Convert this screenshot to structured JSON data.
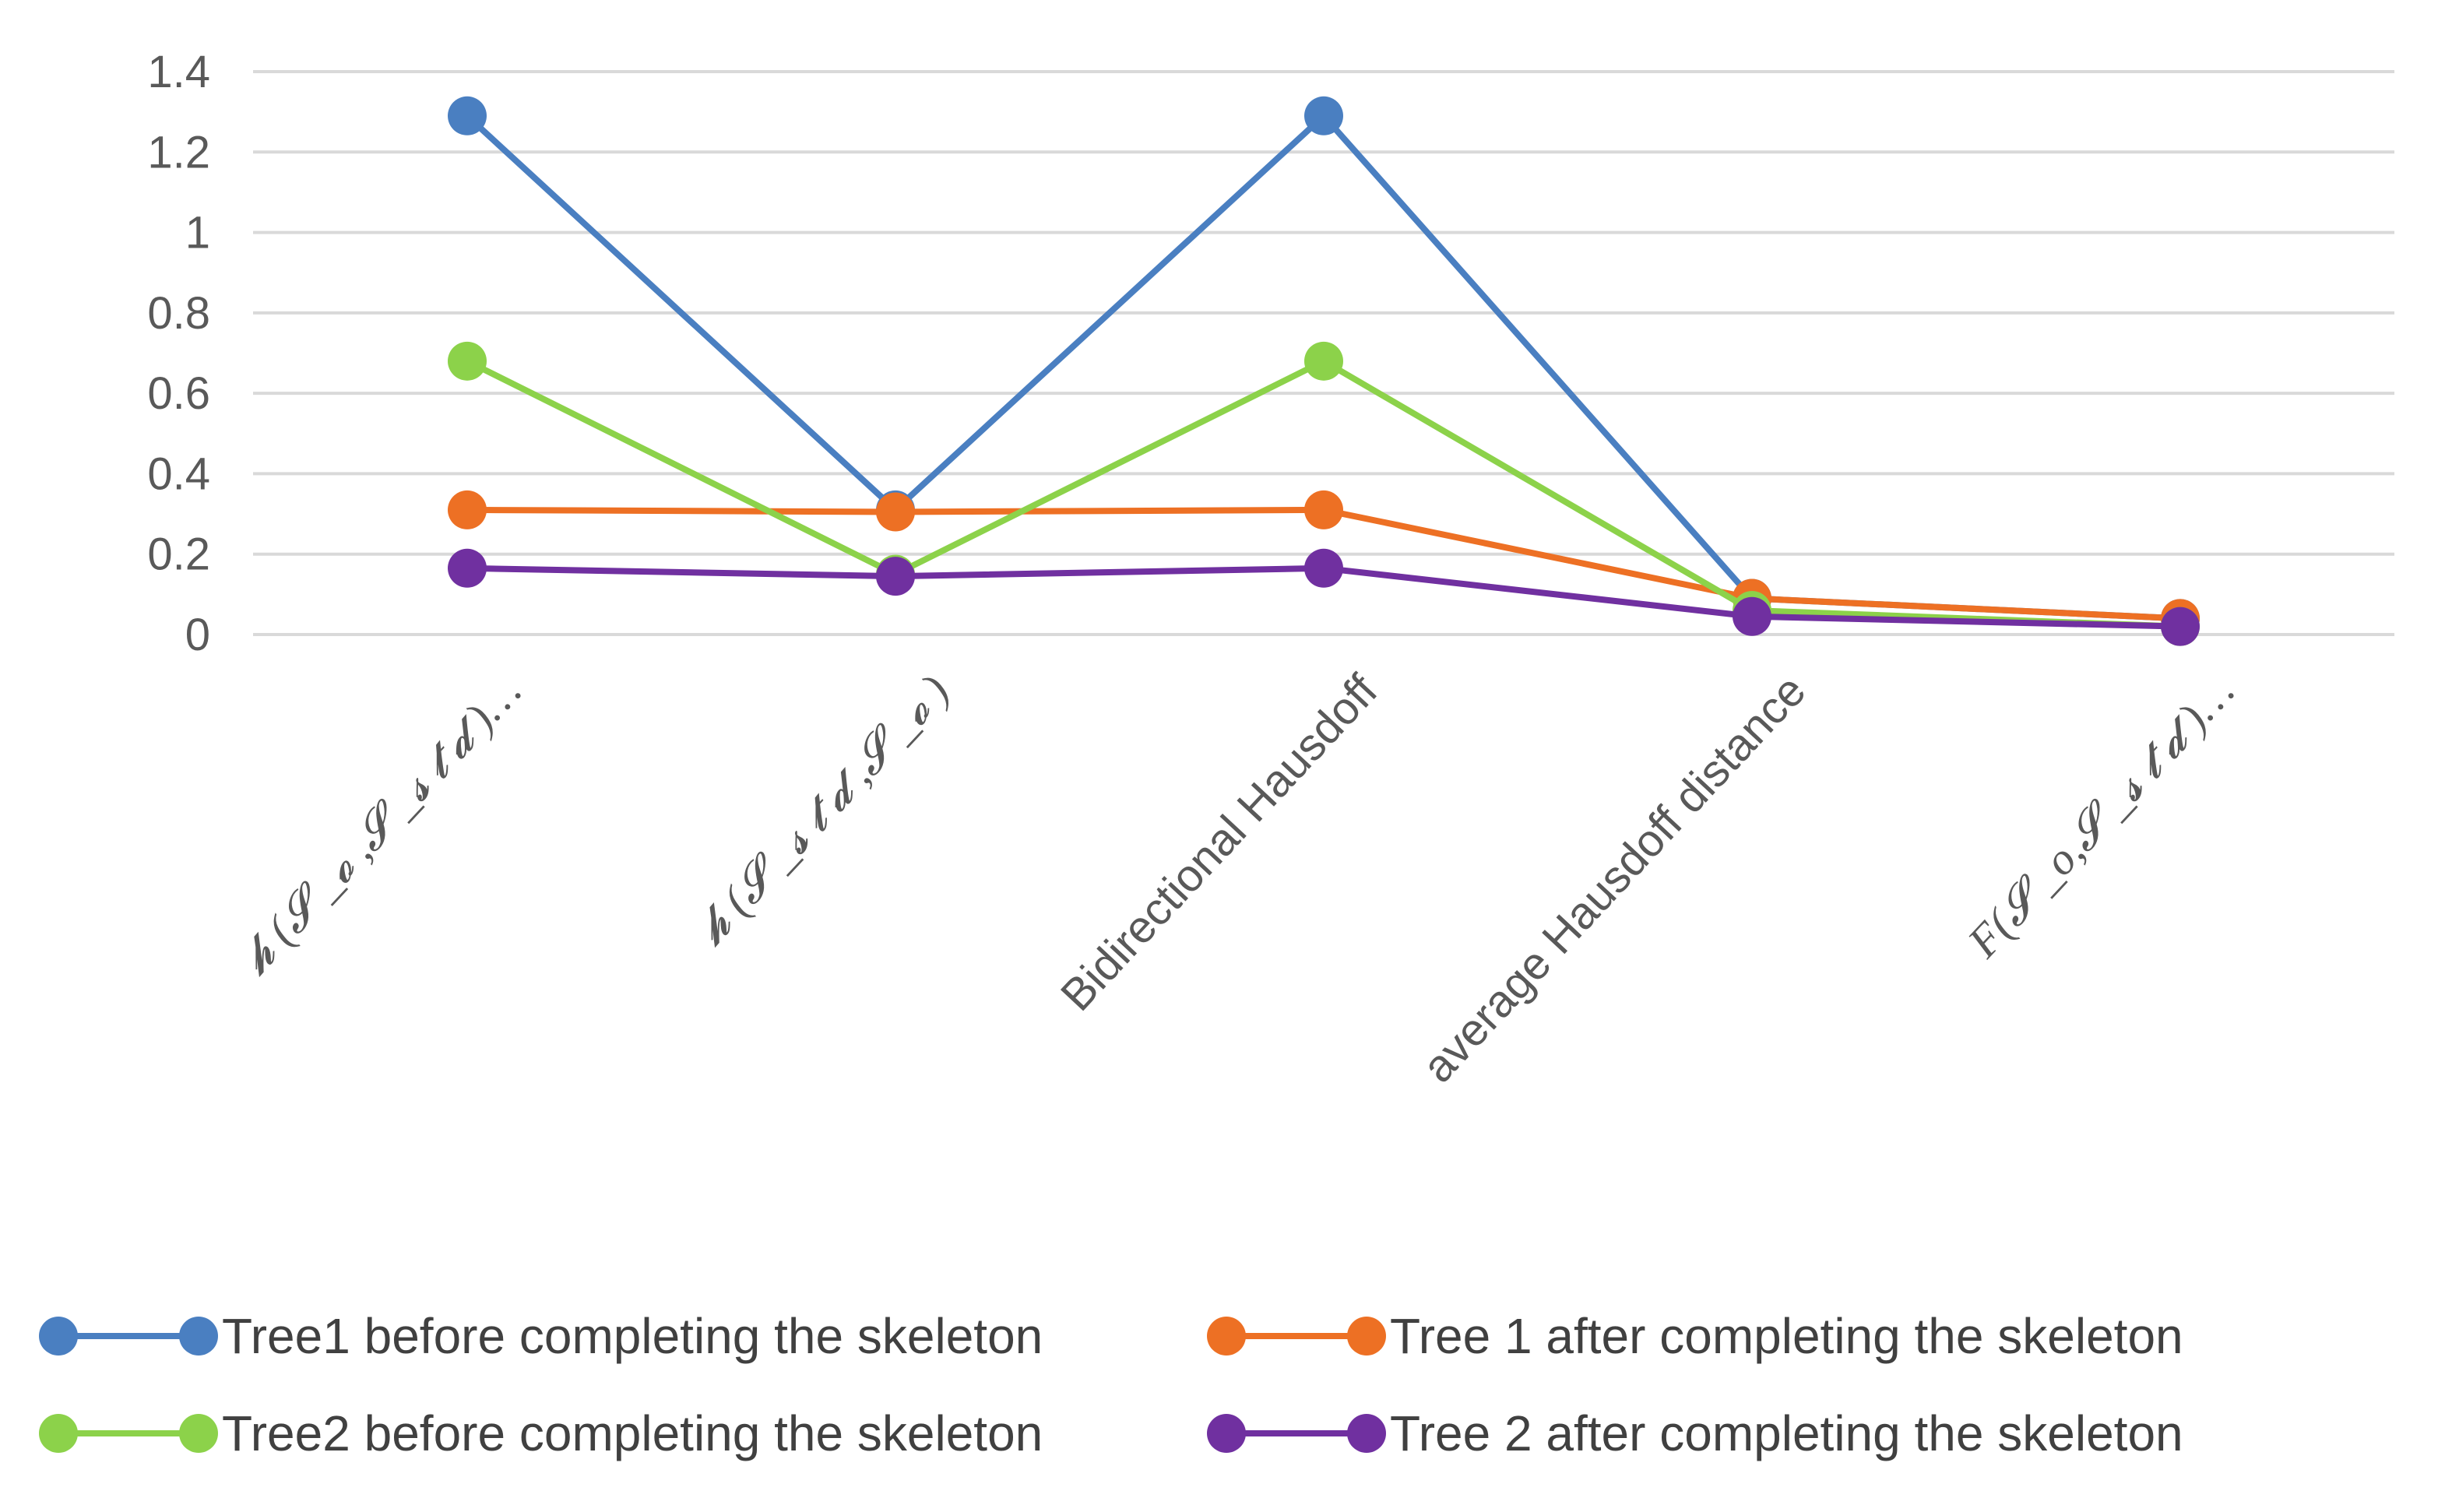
{
  "chart_data": {
    "type": "line",
    "title": "",
    "xlabel": "",
    "ylabel": "",
    "ylim": [
      0,
      1.4
    ],
    "yticks": [
      "0",
      "0.2",
      "0.4",
      "0.6",
      "0.8",
      "1",
      "1.2",
      "1.4"
    ],
    "ytick_values": [
      0,
      0.2,
      0.4,
      0.6,
      0.8,
      1.0,
      1.2,
      1.4
    ],
    "grid": true,
    "legend_position": "bottom",
    "categories": [
      "𝓱 (𝓢 _𝓸 ,𝓢 _𝓼 𝓽 𝓭 )…",
      "𝓱 (𝓢 _𝓼 𝓽 𝓭 ,𝓢 _𝓸 )",
      "Bidirectional Hausdoff",
      "average Hausdoff distance",
      "F(𝓢 _o,𝓢 _𝓼 𝓽 𝓭 )…"
    ],
    "series": [
      {
        "name": "Tree1 before completing the skeleton",
        "color": "#4a7fc1",
        "values": [
          1.29,
          0.31,
          1.29,
          0.09,
          0.04
        ]
      },
      {
        "name": "Tree 1 after completing the skeleton",
        "color": "#ed7024",
        "values": [
          0.31,
          0.305,
          0.31,
          0.09,
          0.04
        ]
      },
      {
        "name": "Tree2 before completing the skeleton",
        "color": "#8cd24a",
        "values": [
          0.68,
          0.15,
          0.68,
          0.06,
          0.02
        ]
      },
      {
        "name": "Tree 2 after completing the skeleton",
        "color": "#7030a0",
        "values": [
          0.165,
          0.145,
          0.165,
          0.045,
          0.02
        ]
      }
    ]
  }
}
